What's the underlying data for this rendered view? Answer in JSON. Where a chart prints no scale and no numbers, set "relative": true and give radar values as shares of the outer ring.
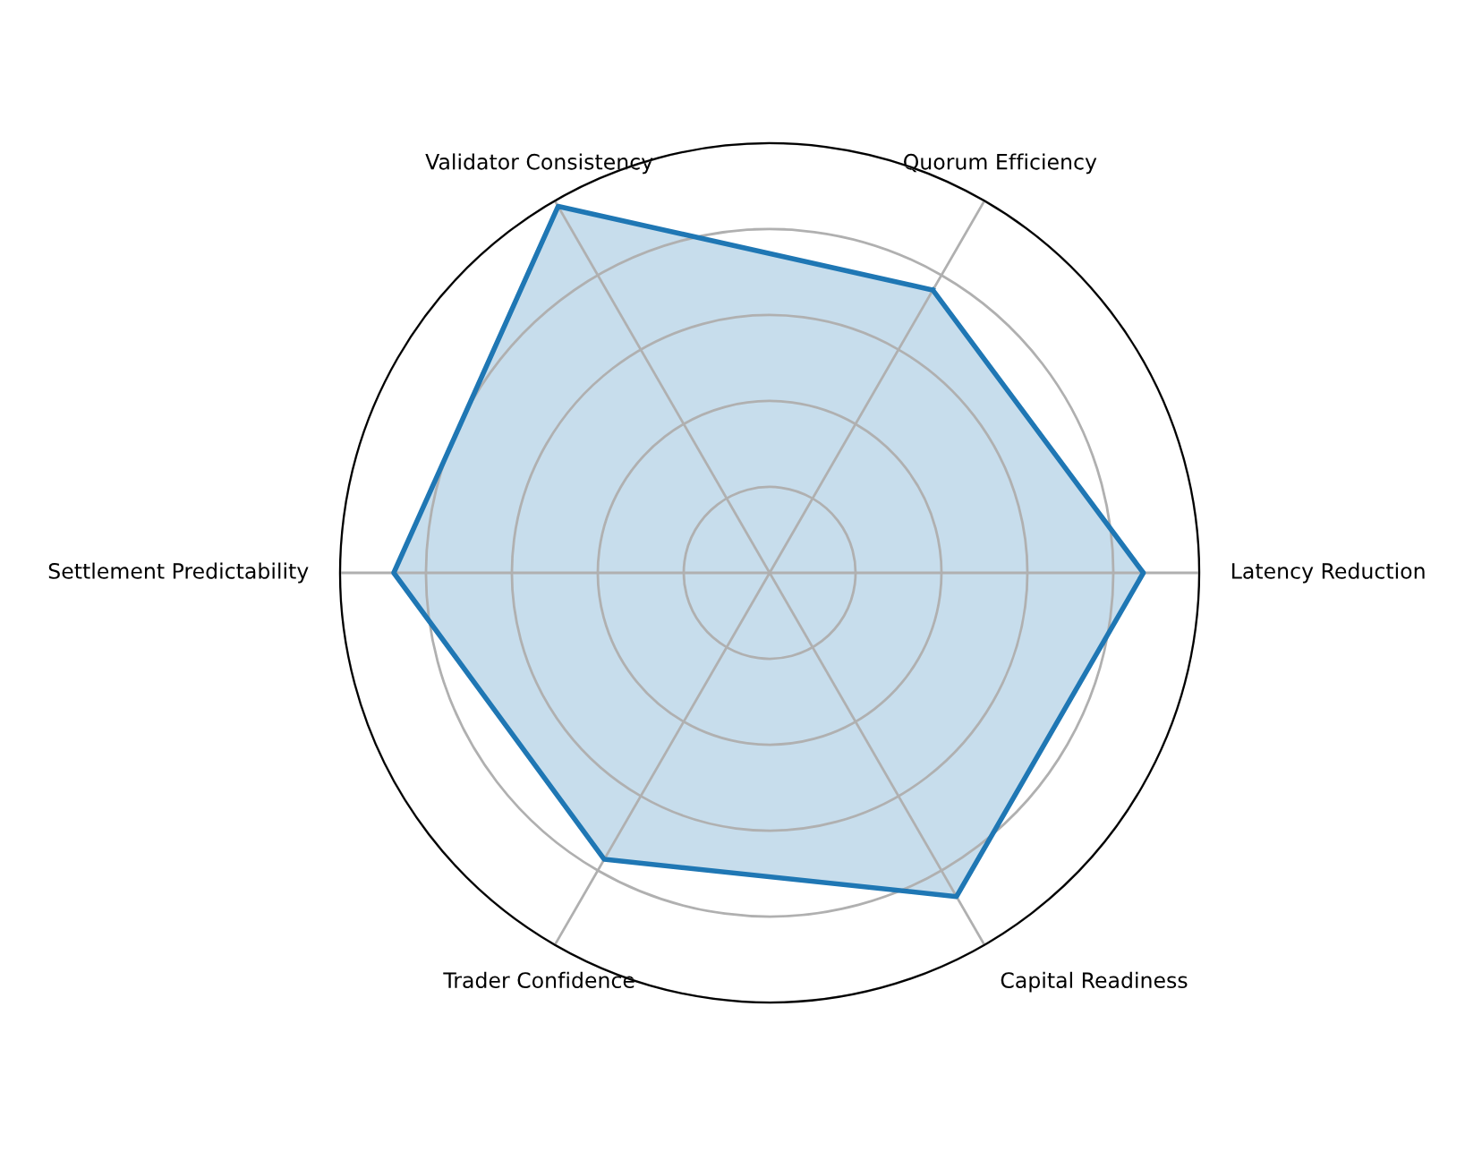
{
  "chart_data": {
    "type": "radar",
    "relative": true,
    "grid": true,
    "categories": [
      "Quorum Efficiency",
      "Latency Reduction",
      "Capital Readiness",
      "Trader Confidence",
      "Settlement Predictability",
      "Validator Consistency"
    ],
    "series": [
      {
        "color": "#1f77b4",
        "values": [
          0.76,
          0.87,
          0.87,
          0.77,
          0.875,
          0.985
        ]
      }
    ]
  }
}
